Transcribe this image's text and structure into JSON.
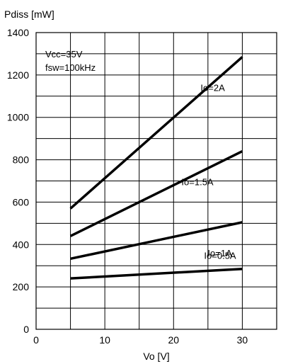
{
  "chart_data": {
    "type": "line",
    "xlabel": "Vo [V]",
    "ylabel": "Pdiss [mW]",
    "xlim": [
      0,
      35
    ],
    "ylim": [
      0,
      1400
    ],
    "xticks": [
      0,
      10,
      20,
      30
    ],
    "yticks": [
      0,
      200,
      400,
      600,
      800,
      1000,
      1200,
      1400
    ],
    "grid": true,
    "conditions": [
      "Vcc=35V",
      "fsw=100kHz"
    ],
    "series": [
      {
        "name": "Io=2A",
        "x": [
          5,
          30
        ],
        "y": [
          570,
          1285
        ]
      },
      {
        "name": "Io=1.5A",
        "x": [
          5,
          30
        ],
        "y": [
          440,
          840
        ]
      },
      {
        "name": "Io=1A",
        "x": [
          5,
          30
        ],
        "y": [
          333,
          505
        ]
      },
      {
        "name": "Io=0.5A",
        "x": [
          5,
          30
        ],
        "y": [
          240,
          285
        ]
      }
    ]
  }
}
